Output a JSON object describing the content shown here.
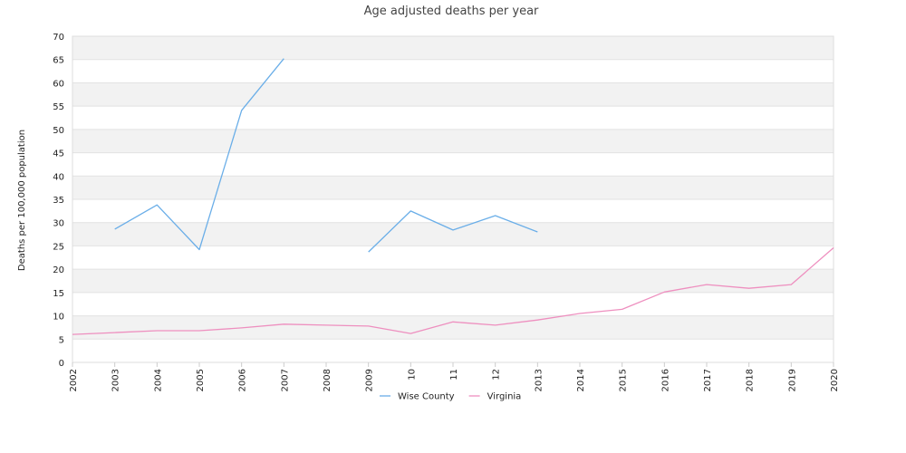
{
  "chart_data": {
    "type": "line",
    "title": "Age adjusted deaths per year",
    "xlabel": "",
    "ylabel": "Deaths per 100,000 population",
    "ylim": [
      0,
      70
    ],
    "y_ticks": [
      "0",
      "5",
      "10",
      "15",
      "20",
      "25",
      "30",
      "35",
      "40",
      "45",
      "50",
      "55",
      "60",
      "65",
      "70"
    ],
    "categories": [
      "2002",
      "2003",
      "2004",
      "2005",
      "2006",
      "2007",
      "2008",
      "2009",
      "10",
      "11",
      "12",
      "2013",
      "2014",
      "2015",
      "2016",
      "2017",
      "2018",
      "2019",
      "2020"
    ],
    "grid": "banded-horizontal",
    "legend_position": "bottom-center",
    "series": [
      {
        "name": "Wise County",
        "color": "#6aaee8",
        "values": [
          null,
          28.6,
          33.8,
          24.2,
          54.1,
          65.2,
          null,
          23.7,
          32.5,
          28.4,
          31.5,
          28.0,
          null,
          null,
          null,
          null,
          null,
          null,
          null
        ]
      },
      {
        "name": "Virginia",
        "color": "#ee8fbf",
        "values": [
          6.0,
          6.4,
          6.8,
          6.8,
          7.4,
          8.2,
          8.0,
          7.8,
          6.2,
          8.7,
          8.0,
          9.1,
          10.5,
          11.4,
          15.1,
          16.7,
          15.9,
          16.7,
          24.6
        ]
      }
    ]
  }
}
